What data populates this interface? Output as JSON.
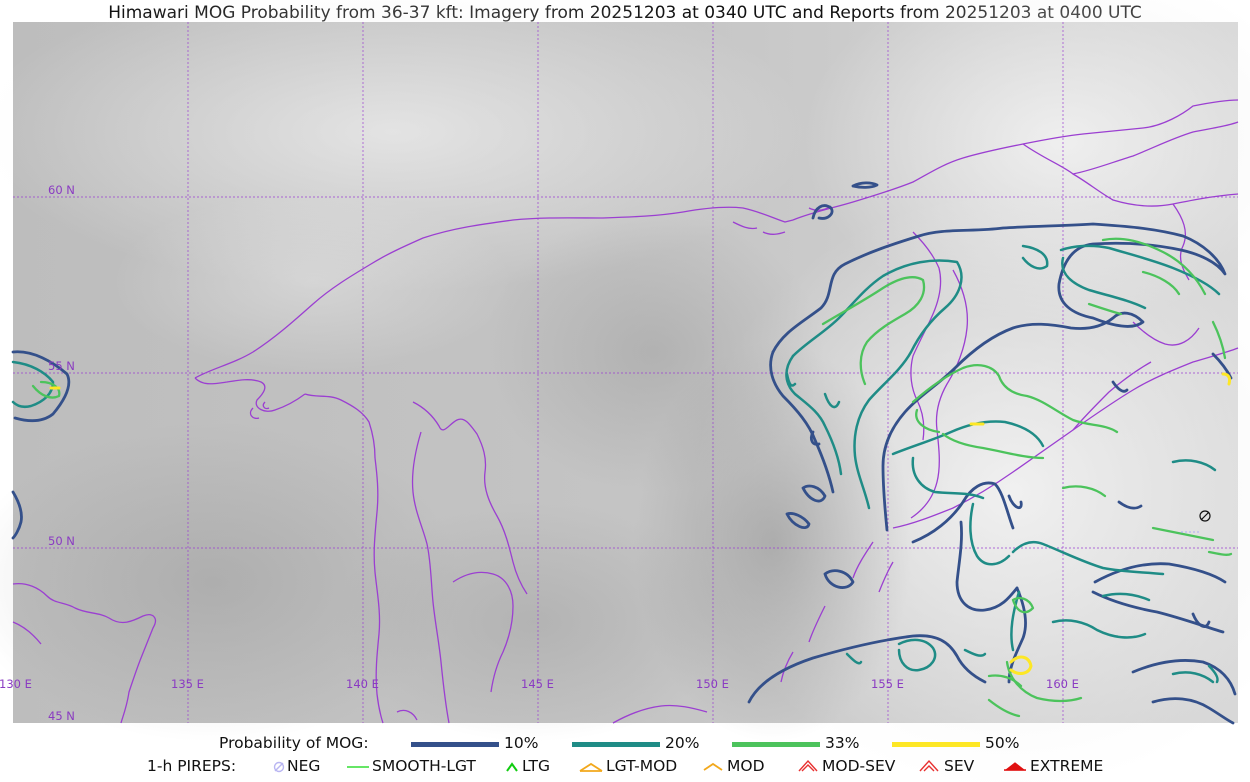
{
  "title": "Himawari MOG Probability from 36-37 kft: Imagery from 20251203 at 0340 UTC and Reports from 20251203 at 0400 UTC",
  "map": {
    "grid_color": "#9b3fd1",
    "coast_color": "#9b3fd1",
    "lat_labels": [
      "60 N",
      "55 N",
      "50 N",
      "45 N"
    ],
    "lon_labels": [
      "130 E",
      "135 E",
      "140 E",
      "145 E",
      "150 E",
      "155 E",
      "160 E"
    ]
  },
  "legend": {
    "probability_label": "Probability of MOG:",
    "levels": [
      {
        "label": "10%",
        "color": "#34508a"
      },
      {
        "label": "20%",
        "color": "#1f8c86"
      },
      {
        "label": "33%",
        "color": "#4cc35c"
      },
      {
        "label": "50%",
        "color": "#fde725"
      }
    ],
    "pireps_label": "1-h PIREPS:",
    "pireps": [
      {
        "label": "NEG",
        "icon": "neg-icon",
        "color": "#b9b6f2"
      },
      {
        "label": "SMOOTH-LGT",
        "icon": "smooth-lgt-icon",
        "color": "#33dd33"
      },
      {
        "label": "LTG",
        "icon": "ltg-icon",
        "color": "#11cc11"
      },
      {
        "label": "LGT-MOD",
        "icon": "lgt-mod-icon",
        "color": "#f2a81c"
      },
      {
        "label": "MOD",
        "icon": "mod-icon",
        "color": "#f2a81c"
      },
      {
        "label": "MOD-SEV",
        "icon": "mod-sev-icon",
        "color": "#e83030"
      },
      {
        "label": "SEV",
        "icon": "sev-icon",
        "color": "#e83030"
      },
      {
        "label": "EXTREME",
        "icon": "extreme-icon",
        "color": "#e01010"
      }
    ]
  }
}
